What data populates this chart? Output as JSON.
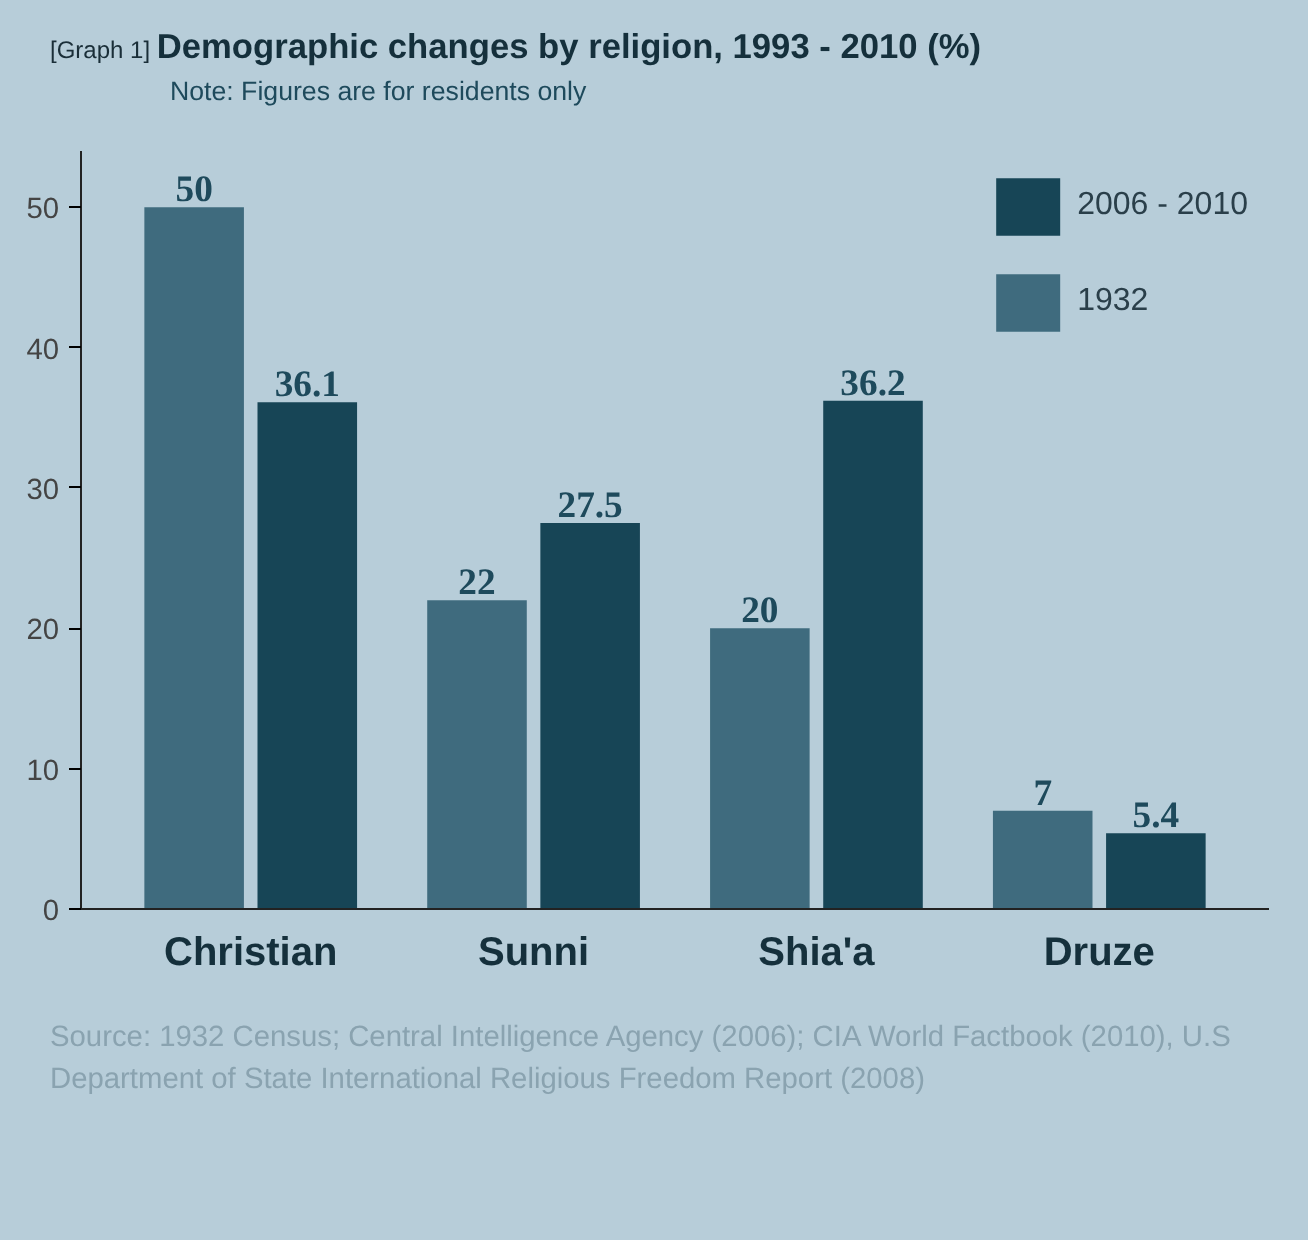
{
  "chart_data": {
    "type": "bar",
    "title": "Demographic  changes by religion, 1993 - 2010 (%)",
    "subtitle": "Note: Figures are for residents only",
    "categories": [
      "Christian",
      "Sunni",
      "Shia'a",
      "Druze"
    ],
    "series": [
      {
        "name": "1932",
        "color": "#3f6b7e",
        "values": [
          50,
          22,
          20,
          7
        ]
      },
      {
        "name": "2006 - 2010",
        "color": "#174556",
        "values": [
          36.1,
          27.5,
          36.2,
          5.4
        ]
      }
    ],
    "ylim": [
      0,
      54
    ],
    "yticks": [
      0,
      10,
      20,
      30,
      40,
      50
    ],
    "grid": false,
    "legend": "top right",
    "data_labels": true,
    "annotations": [
      "[Graph 1]",
      "Source: 1932 Census; Central Intelligence Agency (2006); CIA World Factbook (2010), U.S Department of State International Religious Freedom Report (2008)"
    ]
  }
}
